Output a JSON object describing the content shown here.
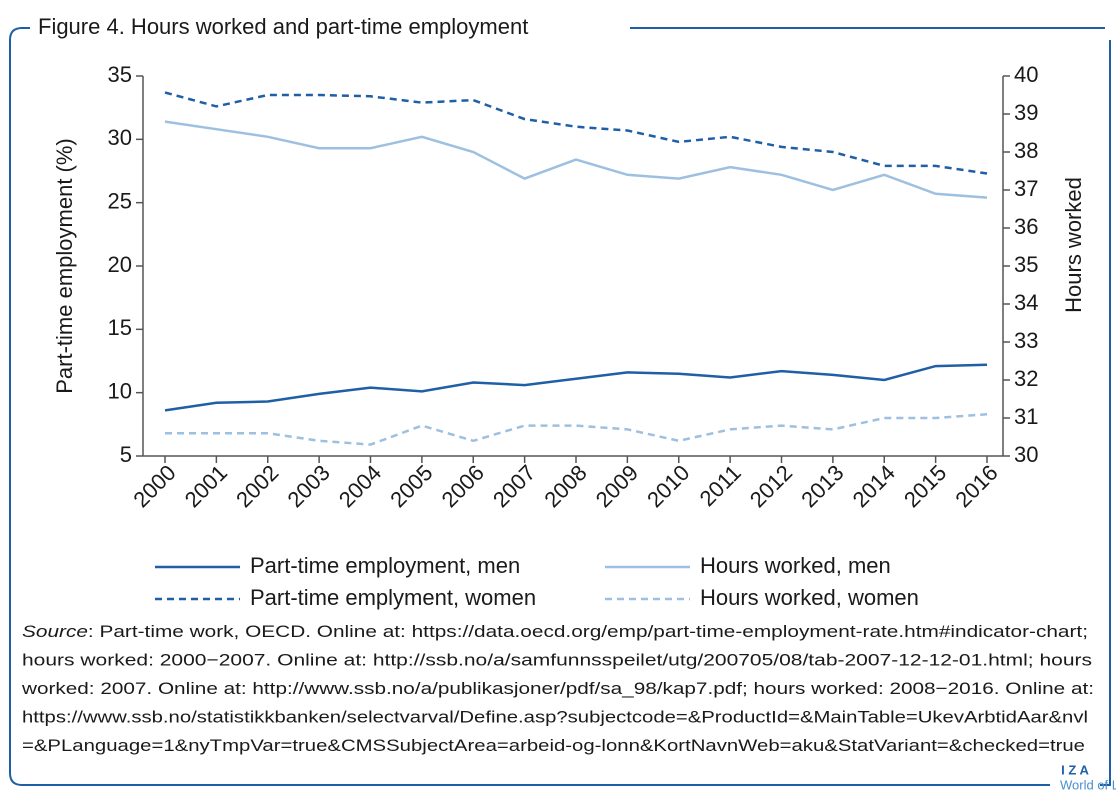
{
  "chart_data": {
    "type": "line",
    "title": "Figure 4. Hours worked and part-time employment",
    "ylabel": "Part-time employment (%)",
    "y2label": "Hours worked",
    "categories": [
      "2000",
      "2001",
      "2002",
      "2003",
      "2004",
      "2005",
      "2006",
      "2007",
      "2008",
      "2009",
      "2010",
      "2011",
      "2012",
      "2013",
      "2014",
      "2015",
      "2016"
    ],
    "ylim": [
      5,
      35
    ],
    "yticks": [
      5,
      10,
      15,
      20,
      25,
      30,
      35
    ],
    "y2lim": [
      30,
      40
    ],
    "y2ticks": [
      30,
      31,
      32,
      33,
      34,
      35,
      36,
      37,
      38,
      39,
      40
    ],
    "series": [
      {
        "name": "Part-time employment, men",
        "color": "#1f5fa6",
        "linestyle": "solid",
        "values": [
          8.6,
          9.2,
          9.3,
          9.9,
          10.4,
          10.1,
          10.8,
          10.6,
          11.1,
          11.6,
          11.5,
          11.2,
          11.7,
          11.4,
          11.0,
          12.1,
          12.2
        ]
      },
      {
        "name": "Part-time emplyment, women",
        "color": "#1f5fa6",
        "linestyle": "dashed",
        "values": [
          33.7,
          32.6,
          33.5,
          33.5,
          33.4,
          32.9,
          33.1,
          31.6,
          31.0,
          30.7,
          29.8,
          30.2,
          29.4,
          29.0,
          27.9,
          27.9,
          27.3
        ]
      },
      {
        "name": "Hours worked, men",
        "color": "#9ec0e0",
        "linestyle": "solid",
        "axis": "y2",
        "values": [
          38.8,
          38.6,
          38.4,
          38.1,
          38.1,
          38.4,
          38.0,
          37.3,
          37.8,
          37.4,
          37.3,
          37.6,
          37.4,
          37.0,
          37.4,
          36.9,
          36.8
        ]
      },
      {
        "name": "Hours worked, women",
        "color": "#9ec0e0",
        "linestyle": "dashed",
        "axis": "y2",
        "values": [
          30.6,
          30.6,
          30.6,
          30.4,
          30.3,
          30.8,
          30.4,
          30.8,
          30.8,
          30.7,
          30.4,
          30.7,
          30.8,
          30.7,
          31.0,
          31.0,
          31.1
        ]
      }
    ],
    "source_label": "Source",
    "source_lines": [
      ": Part-time work, OECD. Online at: https://data.oecd.org/emp/part-time-employment-rate.htm#indicator-chart;",
      "hours worked: 2000−2007. Online at: http://ssb.no/a/samfunnsspeilet/utg/200705/08/tab-2007-12-12-01.html; hours",
      "worked: 2007. Online at: http://www.ssb.no/a/publikasjoner/pdf/sa_98/kap7.pdf; hours worked: 2008−2016. Online at:",
      "https://www.ssb.no/statistikkbanken/selectvarval/Define.asp?subjectcode=&ProductId=&MainTable=UkevArbtidAar&nvl",
      "=&PLanguage=1&nyTmpVar=true&CMSSubjectArea=arbeid-og-lonn&KortNavnWeb=aku&StatVariant=&checked=true"
    ]
  },
  "logo": {
    "mark": "I Z A",
    "name": "World of Labor"
  }
}
